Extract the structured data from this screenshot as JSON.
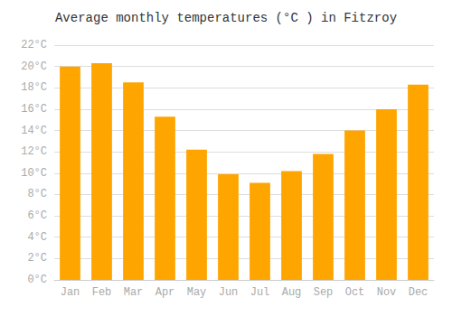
{
  "chart_data": {
    "type": "bar",
    "title": "Average monthly temperatures (°C ) in Fitzroy",
    "categories": [
      "Jan",
      "Feb",
      "Mar",
      "Apr",
      "May",
      "Jun",
      "Jul",
      "Aug",
      "Sep",
      "Oct",
      "Nov",
      "Dec"
    ],
    "values": [
      20.0,
      20.3,
      18.5,
      15.3,
      12.2,
      9.9,
      9.1,
      10.2,
      11.8,
      14.0,
      16.0,
      18.3
    ],
    "color": "#FFA500",
    "ylim": [
      0,
      22
    ],
    "yticks": [
      {
        "value": 0,
        "label": "0°C"
      },
      {
        "value": 2,
        "label": "2°C"
      },
      {
        "value": 4,
        "label": "4°C"
      },
      {
        "value": 6,
        "label": "6°C"
      },
      {
        "value": 8,
        "label": "8°C"
      },
      {
        "value": 10,
        "label": "10°C"
      },
      {
        "value": 12,
        "label": "12°C"
      },
      {
        "value": 14,
        "label": "14°C"
      },
      {
        "value": 16,
        "label": "16°C"
      },
      {
        "value": 18,
        "label": "18°C"
      },
      {
        "value": 20,
        "label": "20°C"
      },
      {
        "value": 22,
        "label": "22°C"
      }
    ],
    "grid": true
  }
}
